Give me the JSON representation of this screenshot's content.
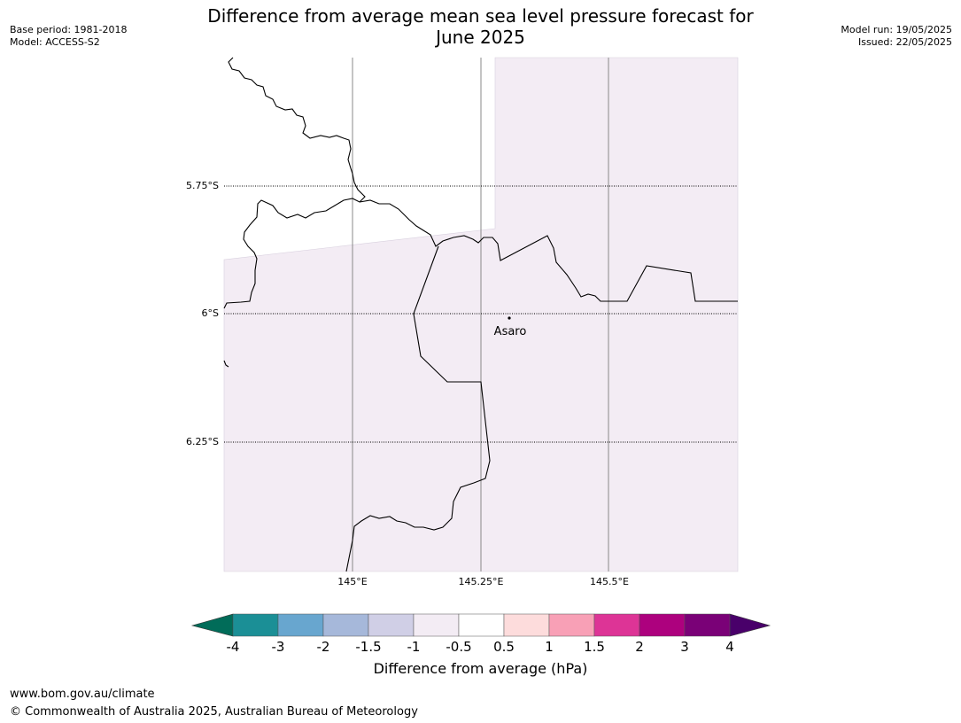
{
  "header": {
    "title_line1": "Difference from average mean sea level pressure forecast for",
    "title_line2": "June 2025",
    "base_period": "Base period: 1981-2018",
    "model": "Model: ACCESS-S2",
    "model_run": "Model run: 19/05/2025",
    "issued": "Issued: 22/05/2025"
  },
  "map": {
    "lat_labels": [
      "5.75°S",
      "6°S",
      "6.25°S"
    ],
    "lon_labels": [
      "145°E",
      "145.25°E",
      "145.5°E"
    ],
    "place_label": "Asaro",
    "fill_color": "#f3ecf4"
  },
  "colorbar": {
    "ticks": [
      "-4",
      "-3",
      "-2",
      "-1.5",
      "-1",
      "-0.5",
      "0.5",
      "1",
      "1.5",
      "2",
      "3",
      "4"
    ],
    "colors": [
      "#1b8f96",
      "#68a6cf",
      "#a6b8da",
      "#d0cfe6",
      "#f3ecf4",
      "#ffffff",
      "#fddcdc",
      "#f8a0b6",
      "#dd3496",
      "#ad017e",
      "#7a0177"
    ],
    "under_color": "#016c59",
    "over_color": "#49006a",
    "label": "Difference from average (hPa)"
  },
  "footer": {
    "url": "www.bom.gov.au/climate",
    "copyright": "© Commonwealth of Australia 2025, Australian Bureau of Meteorology"
  }
}
